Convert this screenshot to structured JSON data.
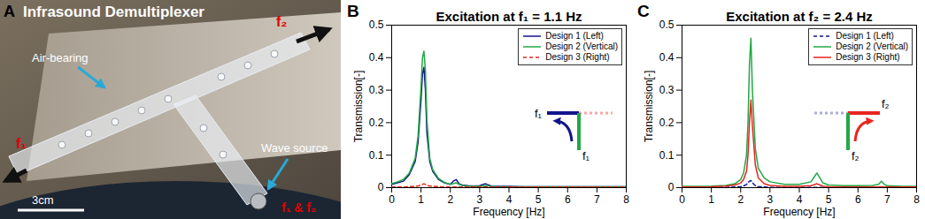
{
  "panel_a": {
    "panel": "A",
    "title": "Infrasound Demultiplexer",
    "labels": {
      "air_bearing": "Air-bearing",
      "f2": "f₂",
      "f1": "f₁",
      "wave_source": "Wave source",
      "f1_f2": "f₁ & f₂",
      "scale": "3cm"
    }
  },
  "chart_data": [
    {
      "panel": "B",
      "type": "line",
      "title": "Excitation at f₁ = 1.1 Hz",
      "x_label": "Frequency [Hz]",
      "y_label": "Transmission[-]",
      "xlim": [
        0,
        8
      ],
      "xticks": [
        0,
        1,
        2,
        3,
        4,
        5,
        6,
        7,
        8
      ],
      "ylim": [
        0,
        0.5
      ],
      "yticks": [
        0,
        0.1,
        0.2,
        0.3,
        0.4,
        0.5
      ],
      "legend": "upper right",
      "annotations": [
        "f₁",
        "f₁"
      ],
      "x": [
        0,
        0.2,
        0.4,
        0.6,
        0.8,
        0.9,
        1.0,
        1.05,
        1.1,
        1.15,
        1.2,
        1.3,
        1.4,
        1.6,
        1.8,
        2.0,
        2.1,
        2.2,
        2.3,
        2.4,
        2.6,
        2.8,
        3.0,
        3.2,
        3.4,
        3.6,
        4.0,
        4.5,
        5.0,
        5.5,
        6.0,
        6.5,
        7.0,
        7.5,
        8.0
      ],
      "series": [
        {
          "name": "Design 1 (Left)",
          "color": "#14148c",
          "line_style": "solid",
          "values": [
            0.01,
            0.015,
            0.02,
            0.04,
            0.08,
            0.14,
            0.27,
            0.35,
            0.37,
            0.3,
            0.17,
            0.08,
            0.05,
            0.025,
            0.015,
            0.01,
            0.02,
            0.025,
            0.012,
            0.008,
            0.006,
            0.005,
            0.006,
            0.012,
            0.005,
            0.004,
            0.004,
            0.003,
            0.003,
            0.003,
            0.003,
            0.003,
            0.003,
            0.003,
            0.003
          ]
        },
        {
          "name": "Design 2 (Vertical)",
          "color": "#22a845",
          "line_style": "solid",
          "values": [
            0.012,
            0.018,
            0.025,
            0.045,
            0.09,
            0.16,
            0.31,
            0.4,
            0.42,
            0.36,
            0.21,
            0.09,
            0.055,
            0.028,
            0.016,
            0.01,
            0.012,
            0.015,
            0.01,
            0.007,
            0.005,
            0.004,
            0.004,
            0.006,
            0.004,
            0.003,
            0.003,
            0.003,
            0.003,
            0.003,
            0.003,
            0.003,
            0.003,
            0.003,
            0.003
          ]
        },
        {
          "name": "Design 3 (Right)",
          "color": "#e8251f",
          "line_style": "dashed",
          "values": [
            0.002,
            0.002,
            0.002,
            0.003,
            0.004,
            0.005,
            0.008,
            0.01,
            0.012,
            0.01,
            0.007,
            0.005,
            0.004,
            0.003,
            0.002,
            0.002,
            0.002,
            0.002,
            0.002,
            0.002,
            0.002,
            0.002,
            0.002,
            0.002,
            0.002,
            0.002,
            0.002,
            0.002,
            0.002,
            0.002,
            0.002,
            0.002,
            0.002,
            0.002,
            0.002
          ]
        }
      ]
    },
    {
      "panel": "C",
      "type": "line",
      "title": "Excitation at f₂ = 2.4 Hz",
      "x_label": "Frequency [Hz]",
      "y_label": "Transmission[-]",
      "xlim": [
        0,
        8
      ],
      "xticks": [
        0,
        1,
        2,
        3,
        4,
        5,
        6,
        7,
        8
      ],
      "ylim": [
        0,
        0.5
      ],
      "yticks": [
        0,
        0.1,
        0.2,
        0.3,
        0.4,
        0.5
      ],
      "legend": "upper right",
      "annotations": [
        "f₂",
        "f₂"
      ],
      "x": [
        0,
        0.5,
        1.0,
        1.5,
        1.8,
        2.0,
        2.1,
        2.2,
        2.25,
        2.3,
        2.35,
        2.4,
        2.5,
        2.6,
        2.8,
        3.0,
        3.5,
        4.0,
        4.4,
        4.5,
        4.6,
        4.7,
        4.8,
        5.0,
        5.5,
        6.0,
        6.5,
        6.7,
        6.8,
        6.9,
        7.0,
        7.5,
        8.0
      ],
      "series": [
        {
          "name": "Design 1 (Left)",
          "color": "#14148c",
          "line_style": "dashed",
          "values": [
            0.001,
            0.001,
            0.001,
            0.001,
            0.002,
            0.003,
            0.005,
            0.01,
            0.015,
            0.02,
            0.022,
            0.015,
            0.006,
            0.003,
            0.002,
            0.001,
            0.001,
            0.001,
            0.001,
            0.001,
            0.001,
            0.001,
            0.001,
            0.001,
            0.001,
            0.001,
            0.001,
            0.001,
            0.001,
            0.001,
            0.001,
            0.001,
            0.001
          ]
        },
        {
          "name": "Design 2 (Vertical)",
          "color": "#22a845",
          "line_style": "solid",
          "values": [
            0.004,
            0.004,
            0.005,
            0.007,
            0.012,
            0.025,
            0.045,
            0.1,
            0.2,
            0.38,
            0.46,
            0.3,
            0.12,
            0.06,
            0.03,
            0.018,
            0.01,
            0.01,
            0.018,
            0.032,
            0.045,
            0.03,
            0.015,
            0.008,
            0.006,
            0.006,
            0.007,
            0.01,
            0.02,
            0.01,
            0.006,
            0.004,
            0.004
          ]
        },
        {
          "name": "Design 3 (Right)",
          "color": "#e8251f",
          "line_style": "solid",
          "values": [
            0.002,
            0.002,
            0.003,
            0.005,
            0.008,
            0.014,
            0.025,
            0.05,
            0.1,
            0.2,
            0.27,
            0.19,
            0.07,
            0.03,
            0.012,
            0.007,
            0.004,
            0.004,
            0.006,
            0.009,
            0.012,
            0.008,
            0.005,
            0.003,
            0.002,
            0.002,
            0.002,
            0.002,
            0.003,
            0.002,
            0.002,
            0.002,
            0.002
          ]
        }
      ]
    }
  ]
}
